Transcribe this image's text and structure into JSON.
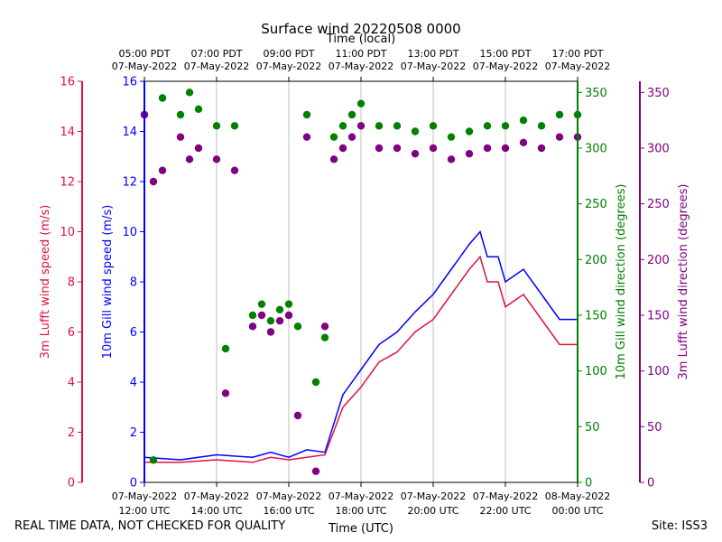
{
  "chart_data": {
    "type": "line+scatter",
    "title": "Surface wind 20220508 0000",
    "top_axis_label": "Time (local)",
    "bottom_axis_label": "Time (UTC)",
    "footer_left": "REAL TIME DATA, NOT CHECKED FOR QUALITY",
    "footer_right": "Site: ISS3",
    "x_hours": [
      12,
      20
    ],
    "bottom_ticks": [
      {
        "hour": 12,
        "l1": "07-May-2022",
        "l2": "12:00 UTC"
      },
      {
        "hour": 14,
        "l1": "07-May-2022",
        "l2": "14:00 UTC"
      },
      {
        "hour": 16,
        "l1": "07-May-2022",
        "l2": "16:00 UTC"
      },
      {
        "hour": 18,
        "l1": "07-May-2022",
        "l2": "18:00 UTC"
      },
      {
        "hour": 20,
        "l1": "07-May-2022",
        "l2": "20:00 UTC"
      },
      {
        "hour": 22,
        "l1": "07-May-2022",
        "l2": "22:00 UTC"
      },
      {
        "hour": 24,
        "l1": "08-May-2022",
        "l2": "00:00 UTC"
      }
    ],
    "top_ticks": [
      {
        "hour": 12,
        "l1": "05:00 PDT",
        "l2": "07-May-2022"
      },
      {
        "hour": 14,
        "l1": "07:00 PDT",
        "l2": "07-May-2022"
      },
      {
        "hour": 16,
        "l1": "09:00 PDT",
        "l2": "07-May-2022"
      },
      {
        "hour": 18,
        "l1": "11:00 PDT",
        "l2": "07-May-2022"
      },
      {
        "hour": 20,
        "l1": "13:00 PDT",
        "l2": "07-May-2022"
      },
      {
        "hour": 22,
        "l1": "15:00 PDT",
        "l2": "07-May-2022"
      },
      {
        "hour": 24,
        "l1": "17:00 PDT",
        "l2": "07-May-2022"
      }
    ],
    "axes": {
      "lufft_speed": {
        "label": "3m Lufft wind speed (m/s)",
        "range": [
          0,
          16
        ],
        "ticks": [
          0,
          2,
          4,
          6,
          8,
          10,
          12,
          14,
          16
        ],
        "color": "#dc143c"
      },
      "gill_speed": {
        "label": "10m Gill wind speed (m/s)",
        "range": [
          0,
          16
        ],
        "ticks": [
          0,
          2,
          4,
          6,
          8,
          10,
          12,
          14,
          16
        ],
        "color": "#0000ff"
      },
      "gill_dir": {
        "label": "10m Gill wind direction (degrees)",
        "range": [
          0,
          360
        ],
        "ticks": [
          0,
          50,
          100,
          150,
          200,
          250,
          300,
          350
        ],
        "color": "#008000"
      },
      "lufft_dir": {
        "label": "3m Lufft wind direction (degrees)",
        "range": [
          0,
          360
        ],
        "ticks": [
          0,
          50,
          100,
          150,
          200,
          250,
          300,
          350
        ],
        "color": "#800080"
      }
    },
    "series": [
      {
        "name": "10m Gill wind speed",
        "kind": "line",
        "color": "#0000ff",
        "x": [
          12.0,
          13.0,
          14.0,
          15.0,
          15.5,
          16.0,
          16.5,
          17.0,
          17.5,
          18.0,
          18.5,
          19.0,
          19.5,
          20.0,
          20.5,
          21.0,
          21.3,
          21.5,
          21.8,
          22.0,
          22.5,
          23.0,
          23.5,
          24.0
        ],
        "y": [
          1.0,
          0.9,
          1.1,
          1.0,
          1.2,
          1.0,
          1.3,
          1.2,
          3.5,
          4.5,
          5.5,
          6.0,
          6.8,
          7.5,
          8.5,
          9.5,
          10.0,
          9.0,
          9.0,
          8.0,
          8.5,
          7.5,
          6.5,
          6.5
        ]
      },
      {
        "name": "3m Lufft wind speed",
        "kind": "line",
        "color": "#dc143c",
        "x": [
          12.0,
          13.0,
          14.0,
          15.0,
          15.5,
          16.0,
          16.5,
          17.0,
          17.5,
          18.0,
          18.5,
          19.0,
          19.5,
          20.0,
          20.5,
          21.0,
          21.3,
          21.5,
          21.8,
          22.0,
          22.5,
          23.0,
          23.5,
          24.0
        ],
        "y": [
          0.8,
          0.8,
          0.9,
          0.8,
          1.0,
          0.9,
          1.0,
          1.1,
          3.0,
          3.8,
          4.8,
          5.2,
          6.0,
          6.5,
          7.5,
          8.5,
          9.0,
          8.0,
          8.0,
          7.0,
          7.5,
          6.5,
          5.5,
          5.5
        ]
      },
      {
        "name": "10m Gill wind direction",
        "kind": "scatter",
        "color": "#008000",
        "x": [
          12.0,
          12.25,
          12.5,
          13.0,
          13.25,
          13.5,
          14.0,
          14.25,
          14.5,
          15.0,
          15.25,
          15.5,
          15.75,
          16.0,
          16.25,
          16.5,
          16.75,
          17.0,
          17.25,
          17.5,
          17.75,
          18.0,
          18.5,
          19.0,
          19.5,
          20.0,
          20.5,
          21.0,
          21.5,
          22.0,
          22.5,
          23.0,
          23.5,
          24.0
        ],
        "y": [
          330,
          20,
          345,
          330,
          350,
          335,
          320,
          120,
          320,
          150,
          160,
          145,
          155,
          160,
          140,
          330,
          90,
          130,
          310,
          320,
          330,
          340,
          320,
          320,
          315,
          320,
          310,
          315,
          320,
          320,
          325,
          320,
          330,
          330
        ]
      },
      {
        "name": "3m Lufft wind direction",
        "kind": "scatter",
        "color": "#800080",
        "x": [
          12.0,
          12.25,
          12.5,
          13.0,
          13.25,
          13.5,
          14.0,
          14.25,
          14.5,
          15.0,
          15.25,
          15.5,
          15.75,
          16.0,
          16.25,
          16.5,
          16.75,
          17.0,
          17.25,
          17.5,
          17.75,
          18.0,
          18.5,
          19.0,
          19.5,
          20.0,
          20.5,
          21.0,
          21.5,
          22.0,
          22.5,
          23.0,
          23.5,
          24.0
        ],
        "y": [
          330,
          270,
          280,
          310,
          290,
          300,
          290,
          80,
          280,
          140,
          150,
          135,
          145,
          150,
          60,
          310,
          10,
          140,
          290,
          300,
          310,
          320,
          300,
          300,
          295,
          300,
          290,
          295,
          300,
          300,
          305,
          300,
          310,
          310
        ]
      }
    ]
  }
}
